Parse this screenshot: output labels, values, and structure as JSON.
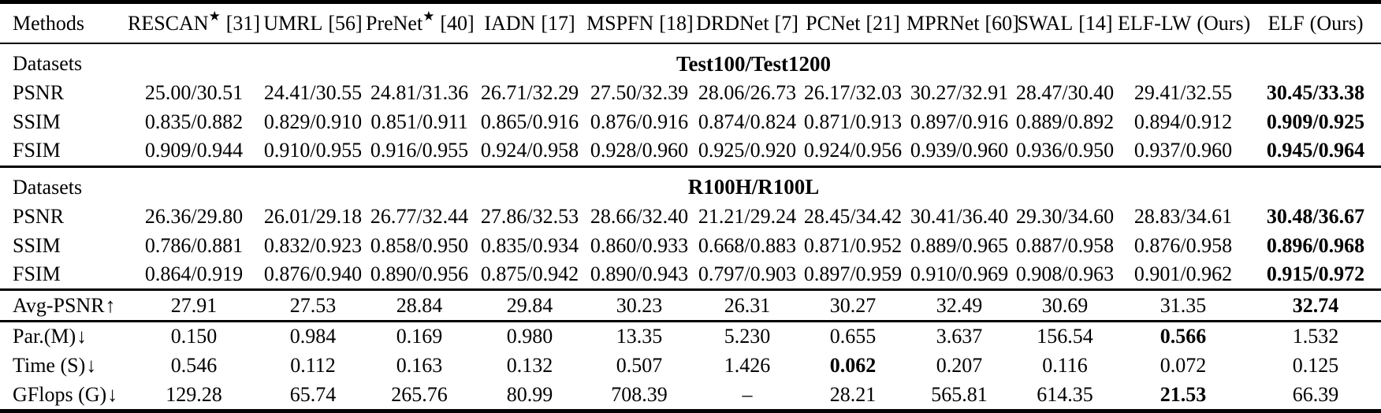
{
  "colors": {
    "background": "#ffffff",
    "text": "#000000",
    "rule": "#000000"
  },
  "header": {
    "methods_label": "Methods",
    "methods": [
      {
        "name": "RESCAN",
        "sup": "★",
        "cite": "[31]"
      },
      {
        "name": "UMRL",
        "sup": "",
        "cite": "[56]"
      },
      {
        "name": "PreNet",
        "sup": "★",
        "cite": "[40]"
      },
      {
        "name": "IADN",
        "sup": "",
        "cite": "[17]"
      },
      {
        "name": "MSPFN",
        "sup": "",
        "cite": "[18]"
      },
      {
        "name": "DRDNet",
        "sup": "",
        "cite": "[7]"
      },
      {
        "name": "PCNet",
        "sup": "",
        "cite": "[21]"
      },
      {
        "name": "MPRNet",
        "sup": "",
        "cite": "[60]"
      },
      {
        "name": "SWAL",
        "sup": "",
        "cite": "[14]"
      },
      {
        "name": "ELF-LW",
        "sup": "",
        "cite": "(Ours)"
      },
      {
        "name": "ELF",
        "sup": "",
        "cite": "(Ours)"
      }
    ]
  },
  "sections": [
    {
      "type": "dataset",
      "row_label": "Datasets",
      "dataset_title": "Test100/Test1200",
      "metrics": [
        {
          "label": "PSNR",
          "arrow": "",
          "values": [
            "25.00/30.51",
            "24.41/30.55",
            "24.81/31.36",
            "26.71/32.29",
            "27.50/32.39",
            "28.06/26.73",
            "26.17/32.03",
            "30.27/32.91",
            "28.47/30.40",
            "29.41/32.55",
            "30.45/33.38"
          ],
          "bold": [
            10
          ]
        },
        {
          "label": "SSIM",
          "arrow": "",
          "values": [
            "0.835/0.882",
            "0.829/0.910",
            "0.851/0.911",
            "0.865/0.916",
            "0.876/0.916",
            "0.874/0.824",
            "0.871/0.913",
            "0.897/0.916",
            "0.889/0.892",
            "0.894/0.912",
            "0.909/0.925"
          ],
          "bold": [
            10
          ]
        },
        {
          "label": "FSIM",
          "arrow": "",
          "values": [
            "0.909/0.944",
            "0.910/0.955",
            "0.916/0.955",
            "0.924/0.958",
            "0.928/0.960",
            "0.925/0.920",
            "0.924/0.956",
            "0.939/0.960",
            "0.936/0.950",
            "0.937/0.960",
            "0.945/0.964"
          ],
          "bold": [
            10
          ]
        }
      ]
    },
    {
      "type": "dataset",
      "row_label": "Datasets",
      "dataset_title": "R100H/R100L",
      "metrics": [
        {
          "label": "PSNR",
          "arrow": "",
          "values": [
            "26.36/29.80",
            "26.01/29.18",
            "26.77/32.44",
            "27.86/32.53",
            "28.66/32.40",
            "21.21/29.24",
            "28.45/34.42",
            "30.41/36.40",
            "29.30/34.60",
            "28.83/34.61",
            "30.48/36.67"
          ],
          "bold": [
            10
          ]
        },
        {
          "label": "SSIM",
          "arrow": "",
          "values": [
            "0.786/0.881",
            "0.832/0.923",
            "0.858/0.950",
            "0.835/0.934",
            "0.860/0.933",
            "0.668/0.883",
            "0.871/0.952",
            "0.889/0.965",
            "0.887/0.958",
            "0.876/0.958",
            "0.896/0.968"
          ],
          "bold": [
            10
          ]
        },
        {
          "label": "FSIM",
          "arrow": "",
          "values": [
            "0.864/0.919",
            "0.876/0.940",
            "0.890/0.956",
            "0.875/0.942",
            "0.890/0.943",
            "0.797/0.903",
            "0.897/0.959",
            "0.910/0.969",
            "0.908/0.963",
            "0.901/0.962",
            "0.915/0.972"
          ],
          "bold": [
            10
          ]
        }
      ]
    },
    {
      "type": "summary",
      "metrics": [
        {
          "label": "Avg-PSNR",
          "arrow": "↑",
          "values": [
            "27.91",
            "27.53",
            "28.84",
            "29.84",
            "30.23",
            "26.31",
            "30.27",
            "32.49",
            "30.69",
            "31.35",
            "32.74"
          ],
          "bold": [
            10
          ]
        }
      ]
    },
    {
      "type": "complexity",
      "metrics": [
        {
          "label": "Par.(M)",
          "arrow": "↓",
          "values": [
            "0.150",
            "0.984",
            "0.169",
            "0.980",
            "13.35",
            "5.230",
            "0.655",
            "3.637",
            "156.54",
            "0.566",
            "1.532"
          ],
          "bold": [
            9
          ]
        },
        {
          "label": "Time (S)",
          "arrow": "↓",
          "values": [
            "0.546",
            "0.112",
            "0.163",
            "0.132",
            "0.507",
            "1.426",
            "0.062",
            "0.207",
            "0.116",
            "0.072",
            "0.125"
          ],
          "bold": [
            6
          ]
        },
        {
          "label": "GFlops (G)",
          "arrow": "↓",
          "values": [
            "129.28",
            "65.74",
            "265.76",
            "80.99",
            "708.39",
            "–",
            "28.21",
            "565.81",
            "614.35",
            "21.53",
            "66.39"
          ],
          "bold": [
            9
          ]
        }
      ]
    }
  ]
}
